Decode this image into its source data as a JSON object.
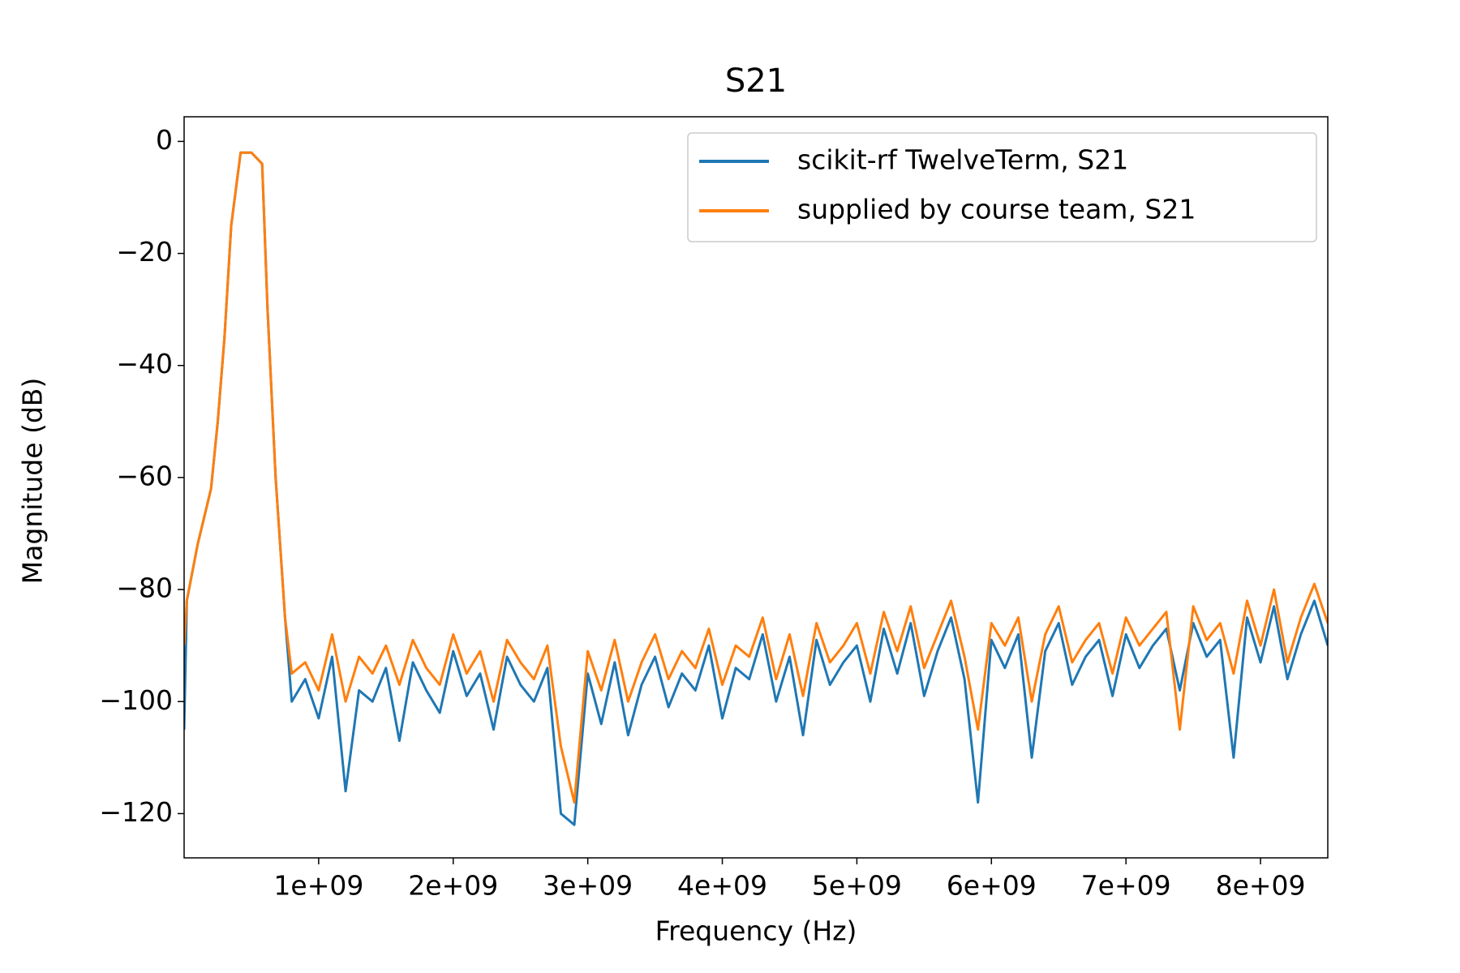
{
  "chart_data": {
    "type": "line",
    "title": "S21",
    "xlabel": "Frequency (Hz)",
    "ylabel": "Magnitude (dB)",
    "x": [
      0,
      20000000,
      100000000,
      200000000,
      250000000,
      300000000,
      350000000,
      420000000,
      500000000,
      580000000,
      620000000,
      680000000,
      750000000,
      800000000,
      900000000,
      1000000000,
      1100000000,
      1200000000,
      1300000000,
      1400000000,
      1500000000,
      1600000000,
      1700000000,
      1800000000,
      1900000000,
      2000000000,
      2100000000,
      2200000000,
      2300000000,
      2400000000,
      2500000000,
      2600000000,
      2700000000,
      2800000000,
      2900000000,
      3000000000,
      3100000000,
      3200000000,
      3300000000,
      3400000000,
      3500000000,
      3600000000,
      3700000000,
      3800000000,
      3900000000,
      4000000000,
      4100000000,
      4200000000,
      4300000000,
      4400000000,
      4500000000,
      4600000000,
      4700000000,
      4800000000,
      4900000000,
      5000000000,
      5100000000,
      5200000000,
      5300000000,
      5400000000,
      5500000000,
      5600000000,
      5700000000,
      5800000000,
      5900000000,
      6000000000,
      6100000000,
      6200000000,
      6300000000,
      6400000000,
      6500000000,
      6600000000,
      6700000000,
      6800000000,
      6900000000,
      7000000000,
      7100000000,
      7200000000,
      7300000000,
      7400000000,
      7500000000,
      7600000000,
      7700000000,
      7800000000,
      7900000000,
      8000000000,
      8100000000,
      8200000000,
      8300000000,
      8400000000,
      8500000000
    ],
    "series": [
      {
        "name": "scikit-rf TwelveTerm, S21",
        "color": "#1f77b4",
        "values": [
          -105,
          -82,
          -72,
          -62,
          -50,
          -35,
          -15,
          -2,
          -2,
          -4,
          -30,
          -60,
          -85,
          -100,
          -96,
          -103,
          -92,
          -116,
          -98,
          -100,
          -94,
          -107,
          -93,
          -98,
          -102,
          -91,
          -99,
          -95,
          -105,
          -92,
          -97,
          -100,
          -94,
          -120,
          -122,
          -95,
          -104,
          -93,
          -106,
          -97,
          -92,
          -101,
          -95,
          -98,
          -90,
          -103,
          -94,
          -96,
          -88,
          -100,
          -92,
          -106,
          -89,
          -97,
          -93,
          -90,
          -100,
          -87,
          -95,
          -86,
          -99,
          -91,
          -85,
          -96,
          -118,
          -89,
          -94,
          -88,
          -110,
          -91,
          -86,
          -97,
          -92,
          -89,
          -99,
          -88,
          -94,
          -90,
          -87,
          -98,
          -86,
          -92,
          -89,
          -110,
          -85,
          -93,
          -83,
          -96,
          -88,
          -82,
          -90
        ]
      },
      {
        "name": "supplied by course team, S21",
        "color": "#ff7f0e",
        "values": [
          -90,
          -82,
          -72,
          -62,
          -50,
          -35,
          -15,
          -2,
          -2,
          -4,
          -30,
          -60,
          -85,
          -95,
          -93,
          -98,
          -88,
          -100,
          -92,
          -95,
          -90,
          -97,
          -89,
          -94,
          -97,
          -88,
          -95,
          -91,
          -100,
          -89,
          -93,
          -96,
          -90,
          -108,
          -118,
          -91,
          -98,
          -89,
          -100,
          -93,
          -88,
          -96,
          -91,
          -94,
          -87,
          -97,
          -90,
          -92,
          -85,
          -96,
          -88,
          -99,
          -86,
          -93,
          -90,
          -86,
          -95,
          -84,
          -91,
          -83,
          -94,
          -88,
          -82,
          -92,
          -105,
          -86,
          -90,
          -85,
          -100,
          -88,
          -83,
          -93,
          -89,
          -86,
          -95,
          -85,
          -90,
          -87,
          -84,
          -105,
          -83,
          -89,
          -86,
          -95,
          -82,
          -90,
          -80,
          -93,
          -85,
          -79,
          -86
        ]
      }
    ],
    "xlim": [
      0,
      8500000000
    ],
    "ylim": [
      -127.9,
      4.4
    ],
    "xticks": [
      {
        "value": 1000000000,
        "label": "1e+09"
      },
      {
        "value": 2000000000,
        "label": "2e+09"
      },
      {
        "value": 3000000000,
        "label": "3e+09"
      },
      {
        "value": 4000000000,
        "label": "4e+09"
      },
      {
        "value": 5000000000,
        "label": "5e+09"
      },
      {
        "value": 6000000000,
        "label": "6e+09"
      },
      {
        "value": 7000000000,
        "label": "7e+09"
      },
      {
        "value": 8000000000,
        "label": "8e+09"
      }
    ],
    "yticks": [
      {
        "value": -120,
        "label": "−120"
      },
      {
        "value": -100,
        "label": "−100"
      },
      {
        "value": -80,
        "label": "−80"
      },
      {
        "value": -60,
        "label": "−60"
      },
      {
        "value": -40,
        "label": "−40"
      },
      {
        "value": -20,
        "label": "−20"
      },
      0
    ],
    "legend": "upper right",
    "grid": false
  }
}
